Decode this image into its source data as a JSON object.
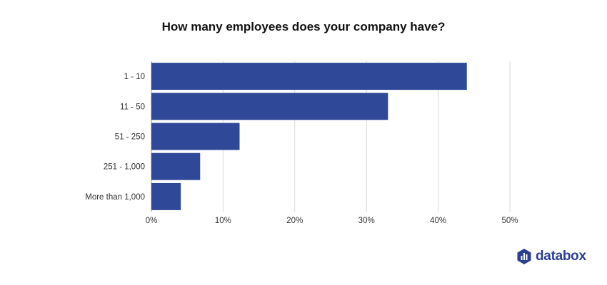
{
  "chart_data": {
    "type": "bar",
    "orientation": "horizontal",
    "title": "How many employees does your company have?",
    "categories": [
      "1 - 10",
      "11 - 50",
      "51 - 250",
      "251 - 1,000",
      "More than 1,000"
    ],
    "values": [
      44,
      33,
      12.3,
      6.8,
      4.1
    ],
    "unit": "%",
    "xlim": [
      0,
      50
    ],
    "x_ticks": [
      "0%",
      "10%",
      "20%",
      "30%",
      "40%",
      "50%"
    ],
    "grid": "vertical",
    "legend": "none",
    "bar_color": "#2f4898"
  },
  "brand": {
    "name": "databox",
    "logo_icon": "databox-logo-icon",
    "color": "#2b3f8f"
  }
}
